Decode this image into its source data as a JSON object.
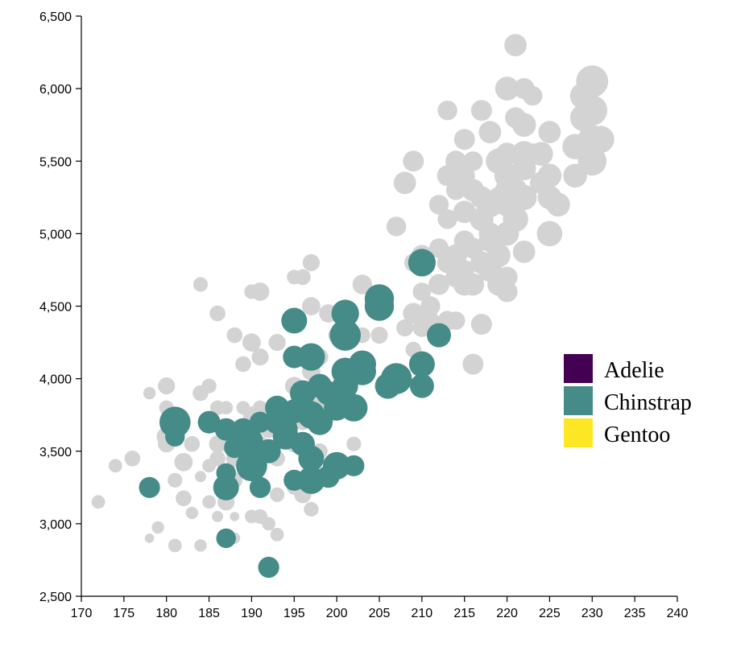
{
  "chart_data": {
    "type": "scatter",
    "title": "",
    "xlabel": "",
    "ylabel": "",
    "xlim": [
      170,
      240
    ],
    "ylim": [
      2500,
      6500
    ],
    "xticks": [
      "170",
      "175",
      "180",
      "185",
      "190",
      "195",
      "200",
      "205",
      "210",
      "215",
      "220",
      "225",
      "230",
      "235",
      "240"
    ],
    "yticks": [
      "2,500",
      "3,000",
      "3,500",
      "4,000",
      "4,500",
      "5,000",
      "5,500",
      "6,000",
      "6,500"
    ],
    "grid": false,
    "legend": {
      "position": "right",
      "entries": [
        {
          "label": "Adelie",
          "color": "#440154"
        },
        {
          "label": "Chinstrap",
          "color": "#458b87"
        },
        {
          "label": "Gentoo",
          "color": "#fde725"
        }
      ]
    },
    "colors": {
      "highlighted": "#458b87",
      "background": "#d3d3d3"
    },
    "series": [
      {
        "name": "Adelie",
        "highlighted": false,
        "points": [
          [
            172,
            3150,
            2.4
          ],
          [
            174,
            3400,
            2.4
          ],
          [
            176,
            3450,
            2.6
          ],
          [
            178,
            3900,
            2.3
          ],
          [
            178,
            2900,
            2.0
          ],
          [
            179,
            2975,
            2.3
          ],
          [
            180,
            3950,
            2.7
          ],
          [
            180,
            3800,
            2.5
          ],
          [
            180,
            3550,
            2.7
          ],
          [
            181,
            3300,
            2.5
          ],
          [
            181,
            2850,
            2.4
          ],
          [
            182,
            3175,
            2.6
          ],
          [
            182,
            3425,
            2.8
          ],
          [
            183,
            3075,
            2.3
          ],
          [
            183,
            3550,
            2.6
          ],
          [
            184,
            3900,
            2.6
          ],
          [
            184,
            3325,
            2.2
          ],
          [
            184,
            2850,
            2.3
          ],
          [
            185,
            3950,
            2.5
          ],
          [
            185,
            3400,
            2.4
          ],
          [
            185,
            3150,
            2.4
          ],
          [
            186,
            3800,
            2.5
          ],
          [
            186,
            3550,
            2.7
          ],
          [
            186,
            3050,
            2.2
          ],
          [
            187,
            3800,
            2.4
          ],
          [
            187,
            3550,
            2.6
          ],
          [
            187,
            3150,
            2.7
          ],
          [
            187,
            2925,
            2.3
          ],
          [
            188,
            3300,
            2.6
          ],
          [
            188,
            3050,
            2.0
          ],
          [
            188,
            2900,
            2.2
          ],
          [
            189,
            3800,
            2.4
          ],
          [
            189,
            3600,
            2.5
          ],
          [
            190,
            3750,
            2.7
          ],
          [
            190,
            3450,
            2.8
          ],
          [
            190,
            3050,
            2.4
          ],
          [
            191,
            3800,
            2.5
          ],
          [
            191,
            3550,
            2.6
          ],
          [
            191,
            3050,
            2.5
          ],
          [
            192,
            3650,
            2.7
          ],
          [
            192,
            3000,
            2.4
          ],
          [
            193,
            3800,
            2.6
          ],
          [
            193,
            3450,
            2.6
          ],
          [
            193,
            2925,
            2.4
          ],
          [
            194,
            3600,
            2.7
          ],
          [
            195,
            3950,
            2.8
          ],
          [
            195,
            3550,
            2.7
          ],
          [
            195,
            3250,
            2.5
          ],
          [
            196,
            3850,
            2.7
          ],
          [
            196,
            3700,
            2.6
          ],
          [
            197,
            4050,
            2.8
          ],
          [
            197,
            3450,
            2.6
          ],
          [
            198,
            3850,
            2.7
          ],
          [
            198,
            3500,
            2.6
          ],
          [
            199,
            3750,
            2.7
          ],
          [
            200,
            3900,
            2.8
          ],
          [
            201,
            3950,
            2.7
          ],
          [
            202,
            3550,
            2.5
          ],
          [
            203,
            4300,
            2.6
          ],
          [
            184,
            4650,
            2.5
          ],
          [
            186,
            4450,
            2.6
          ],
          [
            188,
            4300,
            2.6
          ],
          [
            189,
            4100,
            2.6
          ],
          [
            190,
            4600,
            2.5
          ],
          [
            190,
            4250,
            2.8
          ],
          [
            191,
            4600,
            2.8
          ],
          [
            191,
            4150,
            2.7
          ],
          [
            193,
            4250,
            2.7
          ],
          [
            195,
            4700,
            2.5
          ],
          [
            196,
            4700,
            2.6
          ],
          [
            197,
            4800,
            2.7
          ],
          [
            197,
            4500,
            2.8
          ],
          [
            198,
            4150,
            2.7
          ],
          [
            199,
            4450,
            2.8
          ],
          [
            200,
            4300,
            2.7
          ],
          [
            190,
            3350,
            2.6
          ],
          [
            193,
            3200,
            2.5
          ],
          [
            197,
            3100,
            2.5
          ],
          [
            195,
            3300,
            2.6
          ],
          [
            196,
            3200,
            2.7
          ],
          [
            180,
            3600,
            2.9
          ],
          [
            186,
            3450,
            2.6
          ],
          [
            188,
            3450,
            2.7
          ]
        ]
      },
      {
        "name": "Chinstrap",
        "highlighted": true,
        "points": [
          [
            178,
            3250,
            2.8
          ],
          [
            181,
            3700,
            3.4
          ],
          [
            181,
            3600,
            2.7
          ],
          [
            185,
            3700,
            2.9
          ],
          [
            187,
            3650,
            2.9
          ],
          [
            187,
            3350,
            2.7
          ],
          [
            187,
            3250,
            3.1
          ],
          [
            187,
            2900,
            2.7
          ],
          [
            188,
            3525,
            2.8
          ],
          [
            189,
            3650,
            2.9
          ],
          [
            190,
            3575,
            2.9
          ],
          [
            190,
            3450,
            3.1
          ],
          [
            190,
            3400,
            3.4
          ],
          [
            191,
            3250,
            2.8
          ],
          [
            191,
            3700,
            2.8
          ],
          [
            192,
            2700,
            2.8
          ],
          [
            192,
            3500,
            3.0
          ],
          [
            193,
            3800,
            3.0
          ],
          [
            193,
            3700,
            3.0
          ],
          [
            194,
            3650,
            3.0
          ],
          [
            194,
            3600,
            3.1
          ],
          [
            195,
            4400,
            3.1
          ],
          [
            195,
            4150,
            2.9
          ],
          [
            195,
            3775,
            3.0
          ],
          [
            195,
            3300,
            2.8
          ],
          [
            196,
            3900,
            3.1
          ],
          [
            196,
            3550,
            3.0
          ],
          [
            197,
            4150,
            3.2
          ],
          [
            197,
            3750,
            3.2
          ],
          [
            197,
            3450,
            3.1
          ],
          [
            197,
            3300,
            3.2
          ],
          [
            198,
            3950,
            3.0
          ],
          [
            198,
            3700,
            3.1
          ],
          [
            199,
            3900,
            3.0
          ],
          [
            199,
            3325,
            2.9
          ],
          [
            200,
            3800,
            3.1
          ],
          [
            200,
            3400,
            3.2
          ],
          [
            201,
            4450,
            3.2
          ],
          [
            201,
            4300,
            3.4
          ],
          [
            201,
            4050,
            3.2
          ],
          [
            201,
            3950,
            3.1
          ],
          [
            202,
            3800,
            3.2
          ],
          [
            202,
            3400,
            2.8
          ],
          [
            203,
            4100,
            3.2
          ],
          [
            203,
            4050,
            3.2
          ],
          [
            205,
            4550,
            3.3
          ],
          [
            205,
            4500,
            3.3
          ],
          [
            206,
            3950,
            3.1
          ],
          [
            207,
            4000,
            3.4
          ],
          [
            210,
            4800,
            3.2
          ],
          [
            210,
            4100,
            3.1
          ],
          [
            210,
            3950,
            3.0
          ],
          [
            212,
            4300,
            3.0
          ]
        ]
      },
      {
        "name": "Gentoo",
        "highlighted": false,
        "points": [
          [
            203,
            4650,
            2.9
          ],
          [
            205,
            4300,
            2.7
          ],
          [
            207,
            5050,
            2.9
          ],
          [
            208,
            4350,
            2.7
          ],
          [
            208,
            5350,
            3.1
          ],
          [
            209,
            4200,
            2.6
          ],
          [
            209,
            4450,
            3.0
          ],
          [
            209,
            4800,
            2.8
          ],
          [
            209,
            5500,
            3.0
          ],
          [
            210,
            4350,
            2.8
          ],
          [
            210,
            4600,
            2.8
          ],
          [
            210,
            4850,
            3.0
          ],
          [
            211,
            4500,
            2.9
          ],
          [
            211,
            4400,
            2.8
          ],
          [
            212,
            4650,
            3.0
          ],
          [
            212,
            4900,
            2.9
          ],
          [
            212,
            5200,
            2.9
          ],
          [
            213,
            4400,
            2.9
          ],
          [
            213,
            4800,
            3.0
          ],
          [
            213,
            5100,
            2.9
          ],
          [
            213,
            5400,
            3.0
          ],
          [
            213,
            5850,
            2.9
          ],
          [
            214,
            4400,
            2.8
          ],
          [
            214,
            4700,
            3.0
          ],
          [
            214,
            4850,
            3.1
          ],
          [
            214,
            5300,
            2.9
          ],
          [
            214,
            5500,
            3.0
          ],
          [
            215,
            4650,
            3.1
          ],
          [
            215,
            4750,
            2.9
          ],
          [
            215,
            4950,
            3.0
          ],
          [
            215,
            5150,
            3.1
          ],
          [
            215,
            5400,
            3.0
          ],
          [
            215,
            5650,
            3.0
          ],
          [
            216,
            4100,
            3.0
          ],
          [
            216,
            4650,
            3.1
          ],
          [
            216,
            4900,
            3.0
          ],
          [
            216,
            5300,
            3.1
          ],
          [
            216,
            5500,
            2.9
          ],
          [
            217,
            4375,
            3.0
          ],
          [
            217,
            4800,
            3.1
          ],
          [
            217,
            5100,
            3.2
          ],
          [
            217,
            5250,
            3.1
          ],
          [
            217,
            5850,
            3.0
          ],
          [
            218,
            4750,
            3.2
          ],
          [
            218,
            5000,
            3.1
          ],
          [
            218,
            5200,
            3.3
          ],
          [
            218,
            5700,
            3.1
          ],
          [
            219,
            4650,
            3.1
          ],
          [
            219,
            4850,
            3.2
          ],
          [
            219,
            5250,
            3.0
          ],
          [
            219,
            5500,
            3.3
          ],
          [
            220,
            4600,
            3.0
          ],
          [
            220,
            4700,
            3.0
          ],
          [
            220,
            5000,
            3.2
          ],
          [
            220,
            5200,
            3.2
          ],
          [
            220,
            5400,
            3.3
          ],
          [
            220,
            5550,
            3.1
          ],
          [
            220,
            5300,
            3.2
          ],
          [
            220,
            6000,
            3.2
          ],
          [
            221,
            5100,
            3.3
          ],
          [
            221,
            5300,
            3.2
          ],
          [
            221,
            6300,
            3.1
          ],
          [
            222,
            4875,
            3.1
          ],
          [
            222,
            5250,
            3.3
          ],
          [
            222,
            5450,
            3.2
          ],
          [
            222,
            5550,
            3.3
          ],
          [
            222,
            5750,
            3.2
          ],
          [
            222,
            6000,
            3.0
          ],
          [
            223,
            5950,
            2.9
          ],
          [
            223,
            5550,
            3.0
          ],
          [
            224,
            5350,
            3.1
          ],
          [
            224,
            5550,
            3.2
          ],
          [
            225,
            5000,
            3.3
          ],
          [
            225,
            5250,
            3.2
          ],
          [
            225,
            5400,
            3.2
          ],
          [
            225,
            5700,
            3.1
          ],
          [
            226,
            5200,
            3.2
          ],
          [
            228,
            5400,
            3.2
          ],
          [
            228,
            5600,
            3.3
          ],
          [
            229,
            5800,
            3.4
          ],
          [
            229,
            5950,
            3.4
          ],
          [
            230,
            5500,
            3.5
          ],
          [
            230,
            5650,
            3.5
          ],
          [
            230,
            5850,
            3.6
          ],
          [
            230,
            6050,
            3.7
          ],
          [
            231,
            5650,
            3.4
          ],
          [
            221,
            5800,
            3.0
          ],
          [
            218,
            4950,
            3.1
          ]
        ]
      }
    ]
  }
}
